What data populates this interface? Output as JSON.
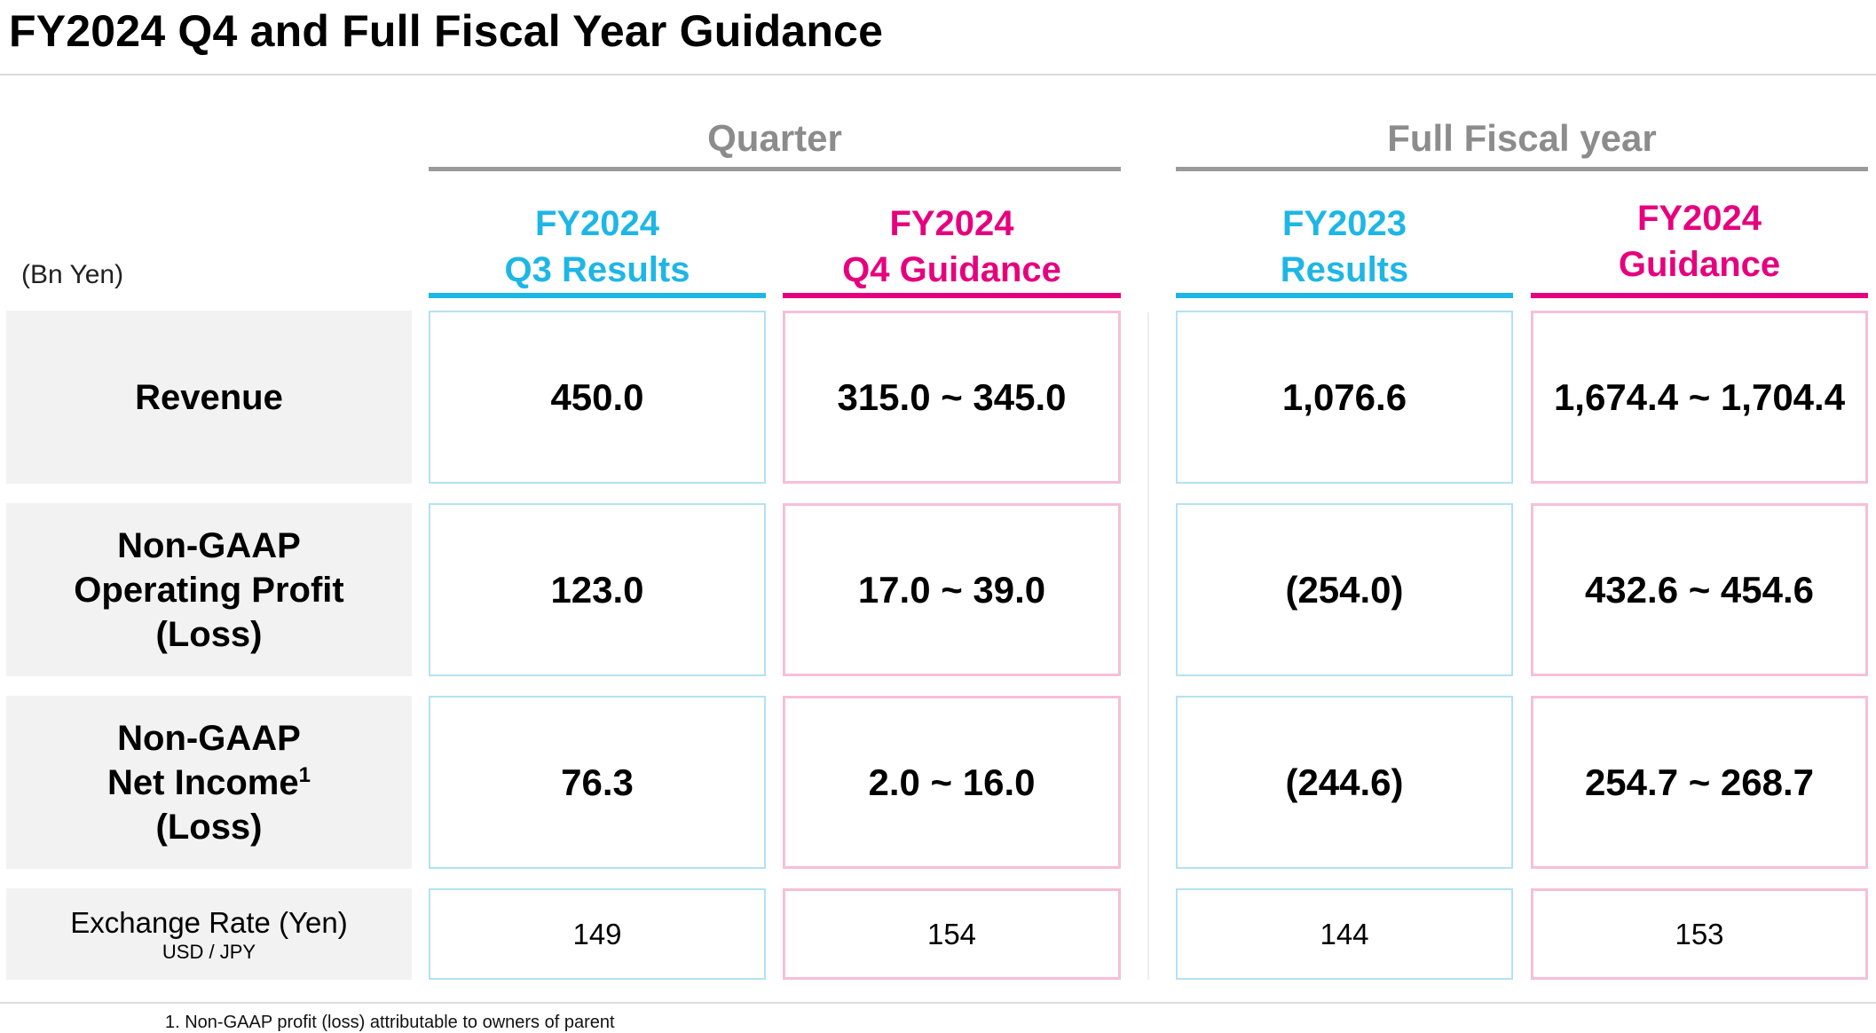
{
  "title": "FY2024 Q4 and Full Fiscal Year Guidance",
  "unit_label": "(Bn Yen)",
  "colors": {
    "cyan": "#1eb6e6",
    "magenta": "#e6007e",
    "group_gray": "#8c8c8c",
    "label_bg": "#f2f2f2"
  },
  "groups": [
    {
      "label": "Quarter"
    },
    {
      "label": "Full Fiscal year"
    }
  ],
  "columns": [
    {
      "line1": "FY2024",
      "line2": "Q3 Results",
      "color": "#1eb6e6"
    },
    {
      "line1": "FY2024",
      "line2": "Q4 Guidance",
      "color": "#e6007e"
    },
    {
      "line1": "FY2023",
      "line2": "Results",
      "color": "#1eb6e6"
    },
    {
      "line1": "FY2024",
      "line2": "Guidance",
      "color": "#e6007e"
    }
  ],
  "rows": [
    {
      "label_lines": [
        "Revenue"
      ],
      "values": [
        "450.0",
        "315.0 ~ 345.0",
        "1,076.6",
        "1,674.4 ~ 1,704.4"
      ]
    },
    {
      "label_lines": [
        "Non-GAAP",
        "Operating Profit",
        "(Loss)"
      ],
      "values": [
        "123.0",
        "17.0 ~ 39.0",
        "(254.0)",
        "432.6 ~ 454.6"
      ]
    },
    {
      "label_lines": [
        "Non-GAAP",
        "Net Income",
        "(Loss)"
      ],
      "label_superscript": "1",
      "values": [
        "76.3",
        "2.0 ~ 16.0",
        "(244.6)",
        "254.7 ~ 268.7"
      ]
    },
    {
      "label_lines": [
        "Exchange Rate (Yen)",
        "USD / JPY"
      ],
      "values": [
        "149",
        "154",
        "144",
        "153"
      ]
    }
  ],
  "footnote": "1. Non-GAAP profit (loss) attributable to owners of parent"
}
